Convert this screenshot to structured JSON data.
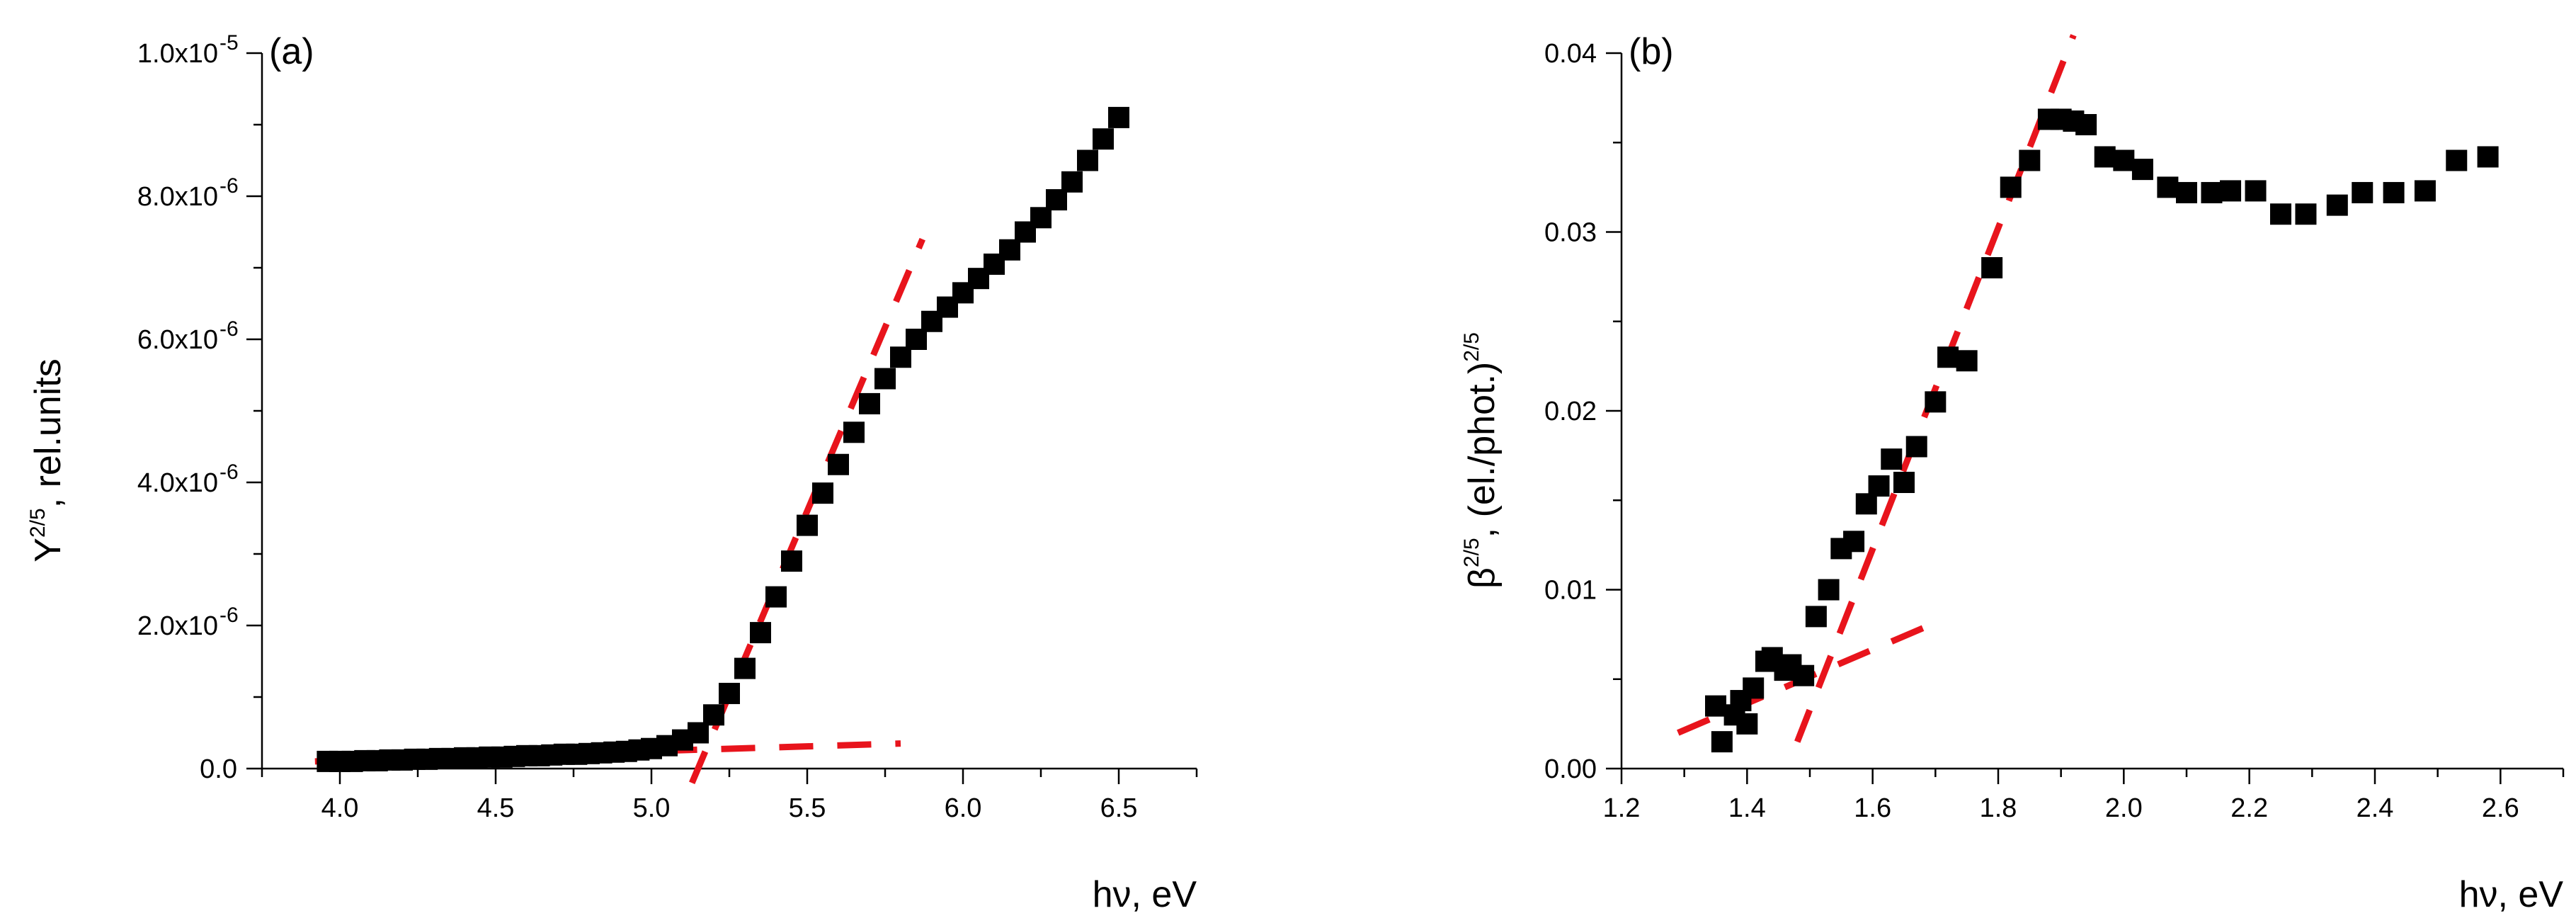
{
  "chart_data": [
    {
      "type": "scatter",
      "panel_label": "(a)",
      "xlabel": "hν, eV",
      "ylabel_main": "Y",
      "ylabel_sup": "2/5",
      "ylabel_rest": ", rel.units",
      "xlim": [
        3.75,
        6.75
      ],
      "ylim": [
        0,
        1e-05
      ],
      "xticks": [
        4.0,
        4.5,
        5.0,
        5.5,
        6.0,
        6.5
      ],
      "xtick_labels": [
        "4.0",
        "4.5",
        "5.0",
        "5.5",
        "6.0",
        "6.5"
      ],
      "yticks": [
        0,
        2e-06,
        4e-06,
        6e-06,
        8e-06,
        1e-05
      ],
      "ytick_labels": [
        {
          "main": "0.0",
          "sup": ""
        },
        {
          "main": "2.0x10",
          "sup": "-6"
        },
        {
          "main": "4.0x10",
          "sup": "-6"
        },
        {
          "main": "6.0x10",
          "sup": "-6"
        },
        {
          "main": "8.0x10",
          "sup": "-6"
        },
        {
          "main": "1.0x10",
          "sup": "-5"
        }
      ],
      "marker_color": "#000000",
      "fit_color": "#e8141c",
      "series": [
        {
          "name": "data",
          "x": [
            3.96,
            4.0,
            4.04,
            4.08,
            4.12,
            4.16,
            4.2,
            4.24,
            4.28,
            4.32,
            4.36,
            4.4,
            4.44,
            4.48,
            4.52,
            4.56,
            4.6,
            4.64,
            4.68,
            4.72,
            4.76,
            4.8,
            4.84,
            4.88,
            4.92,
            4.96,
            5.0,
            5.05,
            5.1,
            5.15,
            5.2,
            5.25,
            5.3,
            5.35,
            5.4,
            5.45,
            5.5,
            5.55,
            5.6,
            5.65,
            5.7,
            5.75,
            5.8,
            5.85,
            5.9,
            5.95,
            6.0,
            6.05,
            6.1,
            6.15,
            6.2,
            6.25,
            6.3,
            6.35,
            6.4,
            6.45,
            6.5
          ],
          "y": [
            1e-07,
            1e-07,
            1e-07,
            1.1e-07,
            1.1e-07,
            1.2e-07,
            1.2e-07,
            1.3e-07,
            1.3e-07,
            1.4e-07,
            1.4e-07,
            1.5e-07,
            1.5e-07,
            1.6e-07,
            1.6e-07,
            1.7e-07,
            1.8e-07,
            1.8e-07,
            1.9e-07,
            2e-07,
            2e-07,
            2.1e-07,
            2.2e-07,
            2.3e-07,
            2.4e-07,
            2.6e-07,
            2.8e-07,
            3.2e-07,
            4e-07,
            5e-07,
            7.5e-07,
            1.05e-06,
            1.4e-06,
            1.9e-06,
            2.4e-06,
            2.9e-06,
            3.4e-06,
            3.85e-06,
            4.25e-06,
            4.7e-06,
            5.1e-06,
            5.45e-06,
            5.75e-06,
            6e-06,
            6.25e-06,
            6.45e-06,
            6.65e-06,
            6.85e-06,
            7.05e-06,
            7.25e-06,
            7.5e-06,
            7.7e-06,
            7.95e-06,
            8.2e-06,
            8.5e-06,
            8.8e-06,
            9.1e-06
          ]
        }
      ],
      "fit_lines": [
        {
          "name": "baseline-fit",
          "x": [
            3.92,
            5.8
          ],
          "y": [
            1e-07,
            3.5e-07
          ]
        },
        {
          "name": "slope-fit",
          "x": [
            5.13,
            5.87
          ],
          "y": [
            -2e-07,
            7.4e-06
          ]
        }
      ]
    },
    {
      "type": "scatter",
      "panel_label": "(b)",
      "xlabel": "hν, eV",
      "ylabel_main": "β",
      "ylabel_sup": "2/5",
      "ylabel_rest": ", (el./phot.)",
      "ylabel_sup2": "2/5",
      "xlim": [
        1.2,
        2.7
      ],
      "ylim": [
        0,
        0.04
      ],
      "xticks": [
        1.2,
        1.4,
        1.6,
        1.8,
        2.0,
        2.2,
        2.4,
        2.6
      ],
      "xtick_labels": [
        "1.2",
        "1.4",
        "1.6",
        "1.8",
        "2.0",
        "2.2",
        "2.4",
        "2.6"
      ],
      "yticks": [
        0,
        0.01,
        0.02,
        0.03,
        0.04
      ],
      "ytick_labels": [
        {
          "main": "0.00",
          "sup": ""
        },
        {
          "main": "0.01",
          "sup": ""
        },
        {
          "main": "0.02",
          "sup": ""
        },
        {
          "main": "0.03",
          "sup": ""
        },
        {
          "main": "0.04",
          "sup": ""
        }
      ],
      "marker_color": "#000000",
      "fit_color": "#e8141c",
      "series": [
        {
          "name": "data",
          "x": [
            1.35,
            1.36,
            1.38,
            1.39,
            1.4,
            1.41,
            1.43,
            1.44,
            1.46,
            1.47,
            1.49,
            1.51,
            1.53,
            1.55,
            1.57,
            1.59,
            1.61,
            1.63,
            1.65,
            1.67,
            1.7,
            1.72,
            1.75,
            1.79,
            1.82,
            1.85,
            1.88,
            1.9,
            1.92,
            1.94,
            1.97,
            2.0,
            2.03,
            2.07,
            2.1,
            2.14,
            2.17,
            2.21,
            2.25,
            2.29,
            2.34,
            2.38,
            2.43,
            2.48,
            2.53,
            2.58
          ],
          "y": [
            0.0035,
            0.0015,
            0.003,
            0.0038,
            0.0025,
            0.0045,
            0.006,
            0.0062,
            0.0055,
            0.0058,
            0.0052,
            0.0085,
            0.01,
            0.0123,
            0.0127,
            0.0148,
            0.0158,
            0.0173,
            0.016,
            0.018,
            0.0205,
            0.023,
            0.0228,
            0.028,
            0.0325,
            0.034,
            0.0363,
            0.0363,
            0.0362,
            0.036,
            0.0342,
            0.034,
            0.0335,
            0.0325,
            0.0322,
            0.0322,
            0.0323,
            0.0323,
            0.031,
            0.031,
            0.0315,
            0.0322,
            0.0322,
            0.0323,
            0.034,
            0.0342
          ]
        }
      ],
      "fit_lines": [
        {
          "name": "baseline-fit",
          "x": [
            1.29,
            1.69
          ],
          "y": [
            0.002,
            0.008
          ]
        },
        {
          "name": "slope-fit",
          "x": [
            1.48,
            1.92
          ],
          "y": [
            0.0015,
            0.041
          ]
        }
      ]
    }
  ]
}
